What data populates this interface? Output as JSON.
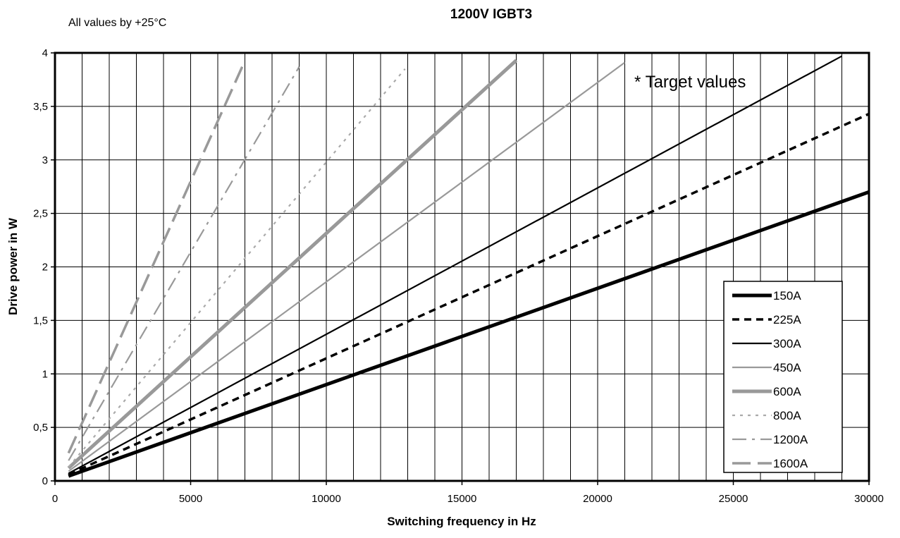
{
  "chart_data": {
    "type": "line",
    "title": "1200V IGBT3",
    "subtitle": "All values by +25°C",
    "annotation": "* Target values",
    "xlabel": "Switching frequency in Hz",
    "ylabel": "Drive power in W",
    "xlim": [
      0,
      30000
    ],
    "ylim": [
      0,
      4
    ],
    "x_ticks": [
      0,
      5000,
      10000,
      15000,
      20000,
      25000,
      30000
    ],
    "x_tick_labels": [
      "0",
      "5000",
      "10000",
      "15000",
      "20000",
      "25000",
      "30000"
    ],
    "y_ticks": [
      0,
      0.5,
      1,
      1.5,
      2,
      2.5,
      3,
      3.5,
      4
    ],
    "y_tick_labels": [
      "0",
      "0,5",
      "1",
      "1,5",
      "2",
      "2,5",
      "3",
      "3,5",
      "4"
    ],
    "grid": "on",
    "x_grid_step": 1000,
    "legend_position": "bottom-right",
    "series": [
      {
        "name": "150A",
        "color": "#000000",
        "style": "solid",
        "width": "thick",
        "x": [
          500,
          30000
        ],
        "y": [
          0.045,
          2.7
        ]
      },
      {
        "name": "225A",
        "color": "#000000",
        "style": "dash",
        "width": "medium",
        "x": [
          500,
          30000
        ],
        "y": [
          0.06,
          3.43
        ]
      },
      {
        "name": "300A",
        "color": "#000000",
        "style": "solid",
        "width": "thin",
        "x": [
          500,
          29000
        ],
        "y": [
          0.07,
          3.97
        ]
      },
      {
        "name": "450A",
        "color": "#999999",
        "style": "solid",
        "width": "thin",
        "x": [
          500,
          21000
        ],
        "y": [
          0.09,
          3.91
        ]
      },
      {
        "name": "600A",
        "color": "#999999",
        "style": "solid",
        "width": "thick",
        "x": [
          500,
          17000
        ],
        "y": [
          0.12,
          3.93
        ]
      },
      {
        "name": "800A",
        "color": "#aaaaaa",
        "style": "dot",
        "width": "thin",
        "x": [
          500,
          12900
        ],
        "y": [
          0.13,
          3.85
        ]
      },
      {
        "name": "1200A",
        "color": "#999999",
        "style": "dashdot",
        "width": "thin",
        "x": [
          500,
          9000
        ],
        "y": [
          0.19,
          3.87
        ]
      },
      {
        "name": "1600A",
        "color": "#999999",
        "style": "longdash",
        "width": "medium",
        "x": [
          500,
          6900
        ],
        "y": [
          0.26,
          3.87
        ]
      }
    ]
  }
}
